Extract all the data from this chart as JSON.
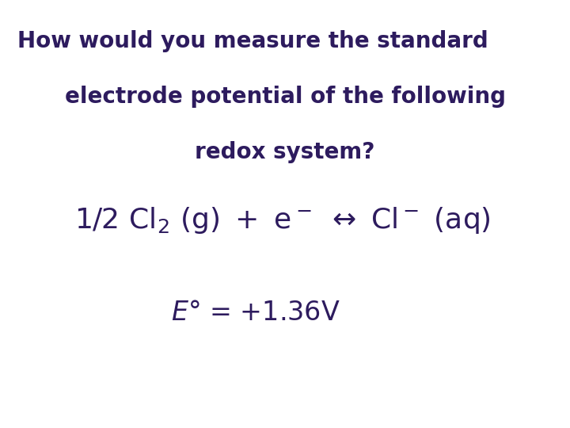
{
  "background_color": "#ffffff",
  "text_color": "#2d1b5e",
  "title_line1": "How would you measure the standard",
  "title_line2": "electrode potential of the following",
  "title_line3": "redox system?",
  "title_fontsize": 20,
  "title_bold": true,
  "equation_fontsize": 26,
  "energy_fontsize": 24,
  "figsize": [
    7.2,
    5.4
  ],
  "dpi": 100
}
